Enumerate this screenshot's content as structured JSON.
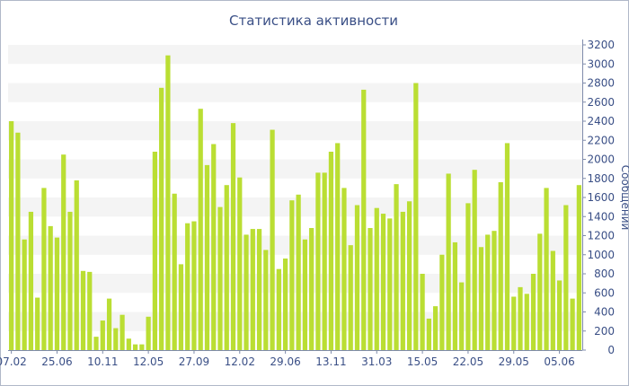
{
  "chart_data": {
    "type": "bar",
    "title": "Статистика активности",
    "ylabel": "Сообщений",
    "xlabel": "",
    "ylim": [
      0,
      3200
    ],
    "yticks": [
      0,
      200,
      400,
      600,
      800,
      1000,
      1200,
      1400,
      1600,
      1800,
      2000,
      2200,
      2400,
      2600,
      2800,
      3000,
      3200
    ],
    "y_axis_position": "right",
    "grid": "alternating horizontal bands",
    "bar_color": "#bade33",
    "xtick_labels": [
      "07.02",
      "25.06",
      "10.11",
      "12.05",
      "27.09",
      "12.02",
      "29.06",
      "13.11",
      "31.03",
      "15.05",
      "22.05",
      "29.05",
      "05.06"
    ],
    "values": [
      2400,
      2280,
      1160,
      1450,
      550,
      1700,
      1300,
      1180,
      2050,
      1450,
      1780,
      830,
      820,
      140,
      310,
      540,
      230,
      370,
      120,
      60,
      60,
      350,
      2080,
      2750,
      3090,
      1640,
      900,
      1330,
      1350,
      2530,
      1940,
      2160,
      1500,
      1730,
      2380,
      1810,
      1210,
      1270,
      1270,
      1050,
      2310,
      850,
      960,
      1570,
      1630,
      1160,
      1280,
      1860,
      1860,
      2080,
      2170,
      1700,
      1100,
      1520,
      2730,
      1280,
      1490,
      1430,
      1380,
      1740,
      1450,
      1560,
      2800,
      800,
      330,
      460,
      1000,
      1850,
      1130,
      710,
      1540,
      1890,
      1080,
      1210,
      1250,
      1760,
      2170,
      560,
      660,
      590,
      800,
      1220,
      1700,
      1040,
      730,
      1520,
      540,
      1730
    ]
  }
}
